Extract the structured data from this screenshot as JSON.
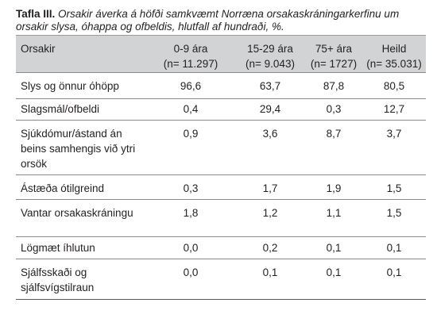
{
  "caption": {
    "label": "Tafla III.",
    "text": "Orsakir áverka á höfði samkvæmt Norræna orsakaskráningarkerfinu um orsakir slysa, óhappa og ofbeldis, hlutfall af hundraði, %."
  },
  "table": {
    "header": {
      "cause": "Orsakir",
      "columns": [
        {
          "line1": "0-9 ára",
          "line2": "(n= 11.297)"
        },
        {
          "line1": "15-29 ára",
          "line2": "(n= 9.043)"
        },
        {
          "line1": "75+ ára",
          "line2": "(n= 1727)"
        },
        {
          "line1": "Heild",
          "line2": "(n= 35.031)"
        }
      ]
    },
    "rows": [
      {
        "cause": "Slys og önnur óhöpp",
        "values": [
          "96,6",
          "63,7",
          "87,8",
          "80,5"
        ]
      },
      {
        "cause": "Slagsmál/ofbeldi",
        "values": [
          "0,4",
          "29,4",
          "0,3",
          "12,7"
        ]
      },
      {
        "cause": "Sjúkdómur/ástand án beins samhengis við ytri orsök",
        "values": [
          "0,9",
          "3,6",
          "8,7",
          "3,7"
        ]
      },
      {
        "cause": "Ástæða ótilgreind",
        "values": [
          "0,3",
          "1,7",
          "1,9",
          "1,5"
        ]
      },
      {
        "cause": "Vantar orsakaskráningu",
        "values": [
          "1,8",
          "1,2",
          "1,1",
          "1,5"
        ]
      },
      {
        "cause": "Lögmæt íhlutun",
        "values": [
          "0,0",
          "0,2",
          "0,1",
          "0,1"
        ]
      },
      {
        "cause": "Sjálfsskaði og sjálfsvígstilraun",
        "values": [
          "0,0",
          "0,1",
          "0,1",
          "0,1"
        ]
      }
    ]
  }
}
